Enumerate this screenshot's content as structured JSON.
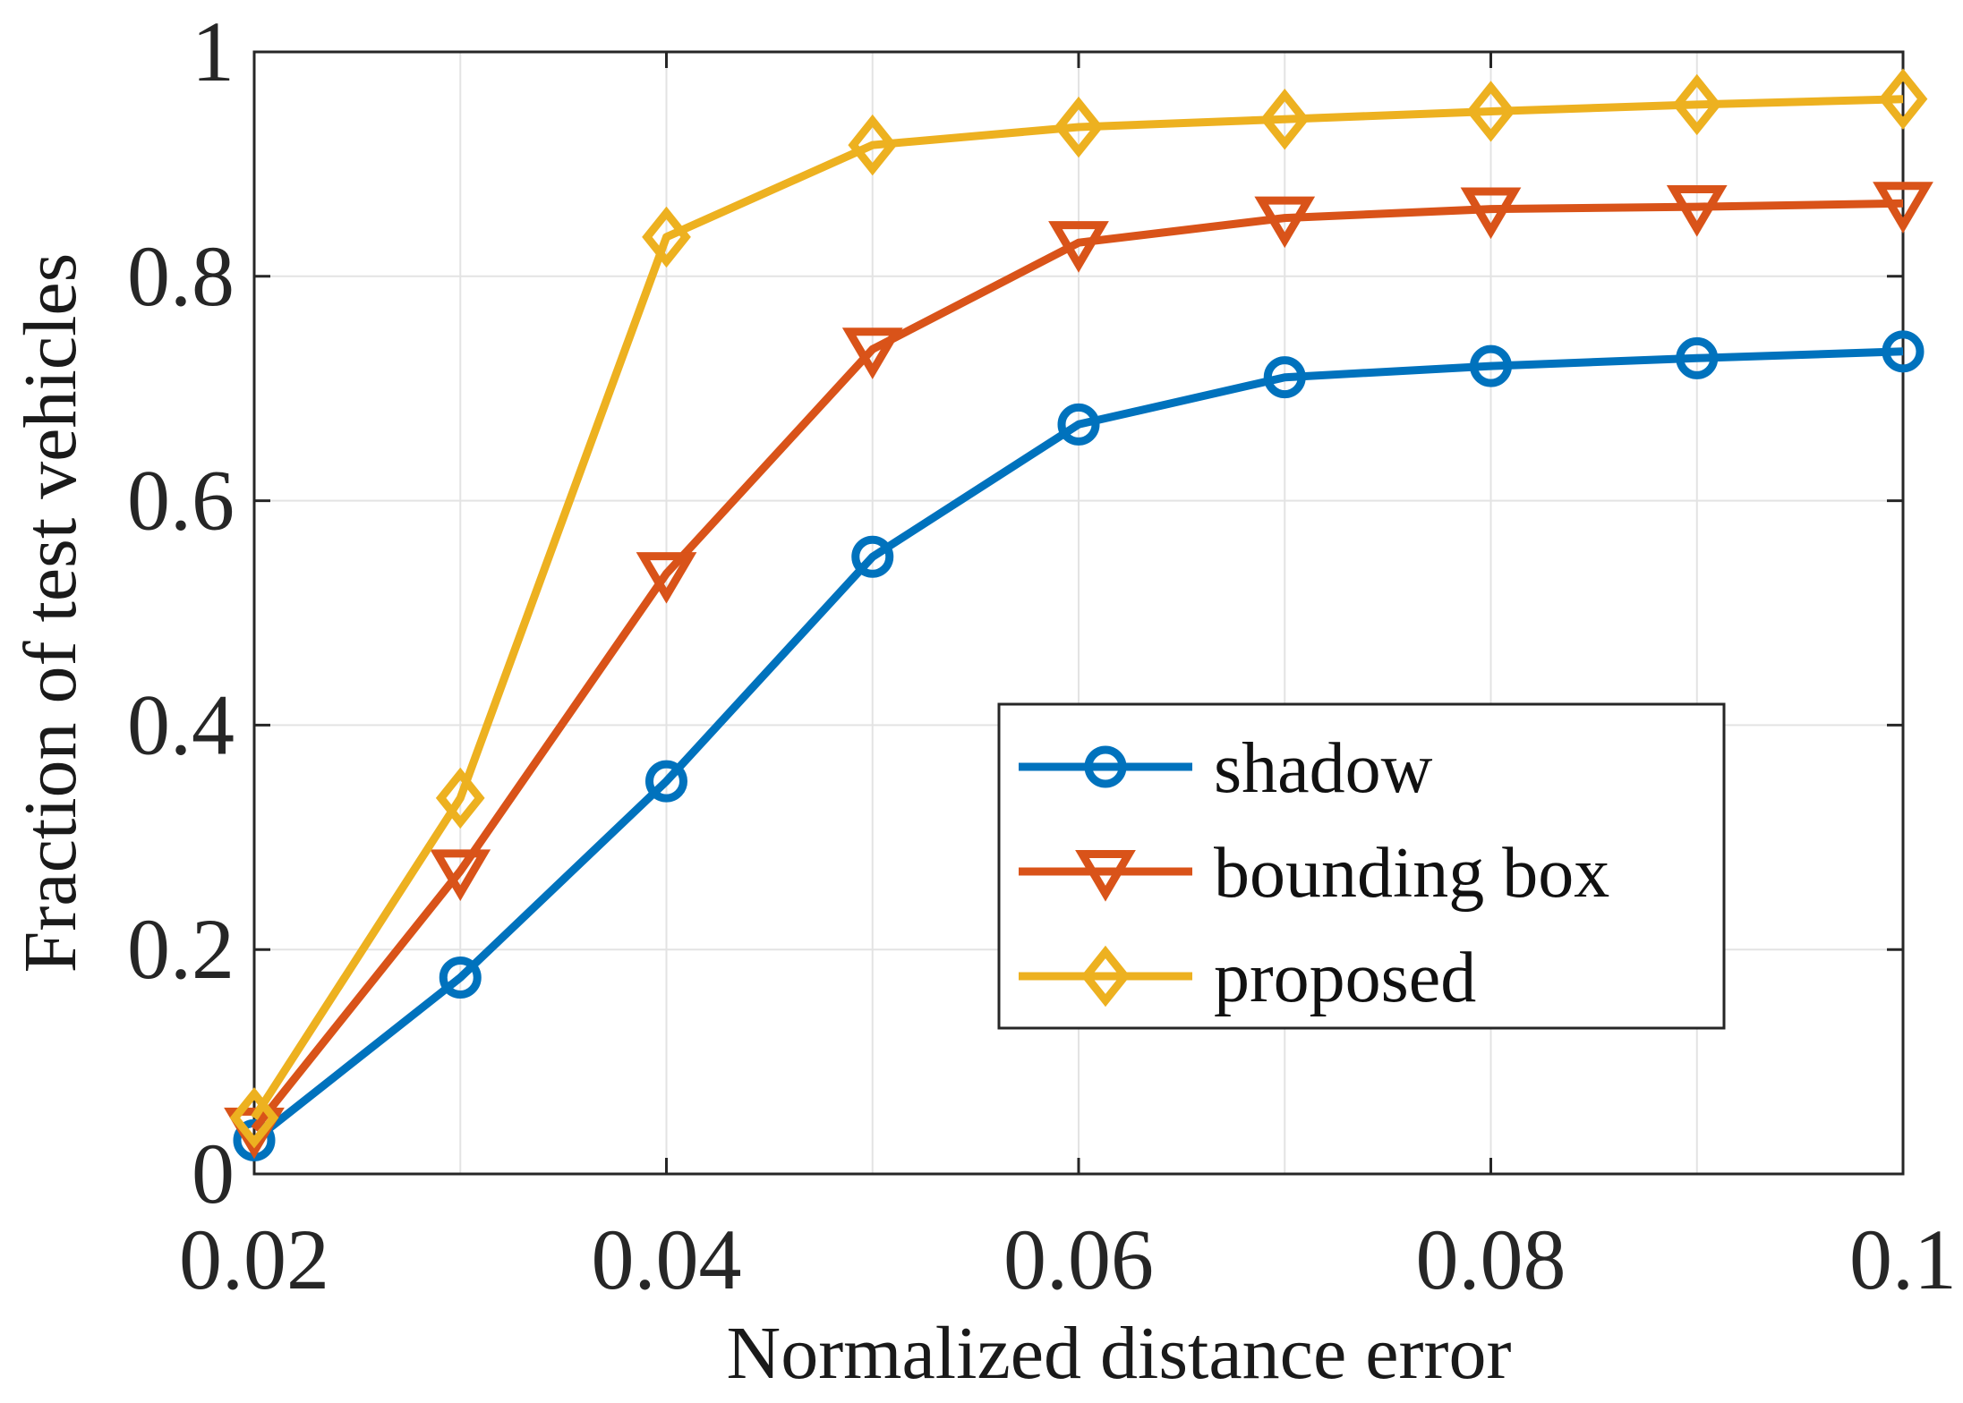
{
  "chart_data": {
    "type": "line",
    "title": "",
    "xlabel": "Normalized distance error",
    "ylabel": "Fraction of test vehicles",
    "xlim": [
      0.02,
      0.1
    ],
    "ylim": [
      0,
      1
    ],
    "grid": true,
    "legend_position": "lower-right",
    "x": [
      0.02,
      0.03,
      0.04,
      0.05,
      0.06,
      0.07,
      0.08,
      0.09,
      0.1
    ],
    "x_ticks": [
      0.02,
      0.04,
      0.06,
      0.08,
      0.1
    ],
    "x_tick_labels": [
      "0.02",
      "0.04",
      "0.06",
      "0.08",
      "0.1"
    ],
    "y_ticks": [
      0,
      0.2,
      0.4,
      0.6,
      0.8,
      1
    ],
    "y_tick_labels": [
      "0",
      "0.2",
      "0.4",
      "0.6",
      "0.8",
      "1"
    ],
    "series": [
      {
        "name": "shadow",
        "color": "#0072BD",
        "marker": "circle",
        "values": [
          0.03,
          0.175,
          0.35,
          0.55,
          0.668,
          0.71,
          0.72,
          0.727,
          0.733
        ]
      },
      {
        "name": "bounding box",
        "color": "#D95319",
        "marker": "triangle-down",
        "values": [
          0.04,
          0.27,
          0.535,
          0.735,
          0.83,
          0.852,
          0.86,
          0.862,
          0.865
        ]
      },
      {
        "name": "proposed",
        "color": "#EDB120",
        "marker": "diamond",
        "values": [
          0.05,
          0.335,
          0.835,
          0.917,
          0.933,
          0.94,
          0.947,
          0.953,
          0.958
        ]
      }
    ]
  }
}
